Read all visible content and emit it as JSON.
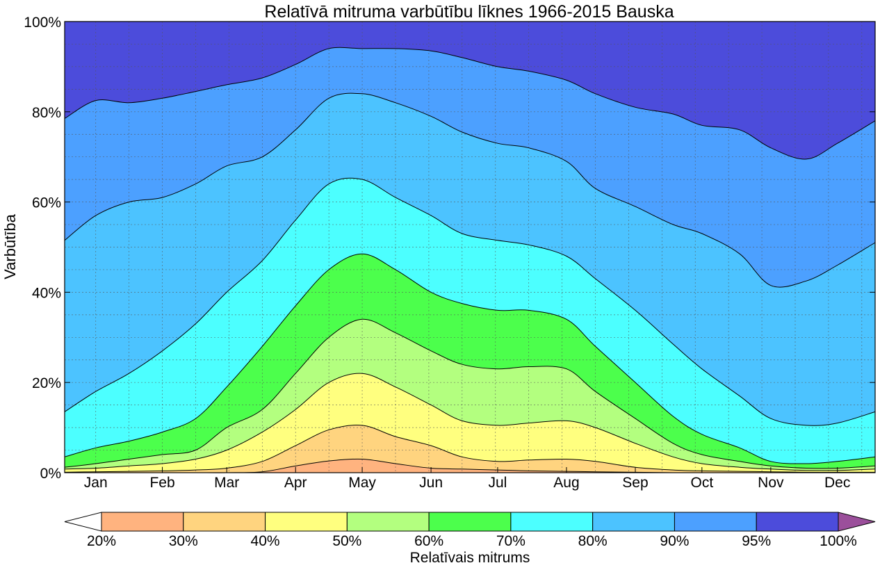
{
  "chart_data": {
    "type": "area",
    "title": "Relatīvā mitruma varbūtību līknes 1966-2015 Bauska",
    "ylabel": "Varbūtība",
    "xlabel": "",
    "ylim": [
      0,
      100
    ],
    "y_ticks": [
      "0%",
      "20%",
      "40%",
      "60%",
      "80%",
      "100%"
    ],
    "y_tick_values": [
      0,
      20,
      40,
      60,
      80,
      100
    ],
    "x_ticks": [
      "Jan",
      "Feb",
      "Mar",
      "Apr",
      "May",
      "Jun",
      "Jul",
      "Aug",
      "Sep",
      "Oct",
      "Nov",
      "Dec"
    ],
    "x_tick_days": [
      15,
      45,
      74,
      105,
      135,
      166,
      196,
      227,
      258,
      288,
      319,
      349
    ],
    "xlim": [
      1,
      366
    ],
    "grid": true,
    "x_days": [
      1,
      15,
      30,
      45,
      60,
      74,
      90,
      105,
      120,
      135,
      150,
      166,
      180,
      196,
      210,
      227,
      240,
      258,
      275,
      288,
      305,
      319,
      335,
      349,
      366
    ],
    "colorbar": {
      "label": "Relatīvais mitrums",
      "ticks": [
        "20%",
        "30%",
        "40%",
        "50%",
        "60%",
        "70%",
        "80%",
        "90%",
        "95%",
        "100%"
      ],
      "under_color": "#ffffff",
      "over_color": "#9b4f9b"
    },
    "series": [
      {
        "name": "20%",
        "color": "#ffb37f",
        "values": [
          0,
          0,
          0,
          0,
          0,
          0,
          0.2,
          1.5,
          2.6,
          3,
          2,
          1,
          0.8,
          0.6,
          0.4,
          0.3,
          0.2,
          0.1,
          0,
          0,
          0,
          0,
          0,
          0,
          0
        ]
      },
      {
        "name": "30%",
        "color": "#ffd47f",
        "values": [
          0.1,
          0.2,
          0.3,
          0.4,
          0.6,
          1,
          2.5,
          6,
          9.5,
          10.5,
          8,
          6,
          3.5,
          2.5,
          2.8,
          3,
          2.5,
          1.2,
          0.6,
          0.4,
          0.3,
          0.2,
          0.1,
          0.1,
          0.1
        ]
      },
      {
        "name": "40%",
        "color": "#ffff7f",
        "values": [
          0.8,
          1,
          1.5,
          2,
          3,
          5,
          9,
          14,
          20,
          22,
          19,
          15,
          11.5,
          10.5,
          11,
          11.5,
          10,
          6.5,
          3.5,
          2,
          1.2,
          0.8,
          0.5,
          0.5,
          0.8
        ]
      },
      {
        "name": "50%",
        "color": "#b3ff7f",
        "values": [
          1.2,
          2,
          3,
          4,
          5,
          10,
          14,
          22,
          30,
          34,
          31,
          27,
          24,
          23,
          23.5,
          23,
          18,
          12,
          6.5,
          4,
          2.5,
          1.5,
          1,
          1,
          1.5
        ]
      },
      {
        "name": "60%",
        "color": "#4cff4c",
        "values": [
          3.5,
          5.5,
          7,
          9,
          12,
          19,
          28,
          37,
          45,
          48.5,
          45,
          40,
          37.5,
          36,
          36,
          34,
          28,
          20,
          12.5,
          8.5,
          5.5,
          2.5,
          2,
          2.5,
          3.5
        ]
      },
      {
        "name": "70%",
        "color": "#4cffff",
        "values": [
          13.5,
          18,
          22,
          27,
          33,
          40,
          47,
          56,
          64,
          65,
          61,
          57,
          53,
          51.5,
          50.5,
          48,
          43,
          36,
          28.5,
          23,
          17,
          12,
          10.5,
          11,
          13.5
        ]
      },
      {
        "name": "80%",
        "color": "#4cc3ff",
        "values": [
          51.5,
          57,
          60,
          61,
          64,
          68,
          70,
          76,
          83,
          84,
          82,
          79,
          75.5,
          73,
          72,
          69,
          63,
          59,
          55,
          53,
          48.5,
          41.5,
          42.5,
          46,
          51
        ]
      },
      {
        "name": "90%",
        "color": "#4ca0ff",
        "values": [
          78.5,
          82.5,
          82,
          83,
          84.5,
          86,
          87.5,
          90.5,
          94,
          94,
          94,
          93.5,
          92,
          90,
          89,
          87,
          84,
          81,
          79.5,
          77,
          76,
          72,
          69.5,
          73,
          78
        ]
      },
      {
        "name": "95%",
        "color": "#4c4cdb",
        "values": [
          100,
          100,
          100,
          100,
          100,
          100,
          100,
          100,
          100,
          100,
          100,
          100,
          100,
          100,
          100,
          100,
          100,
          100,
          100,
          100,
          100,
          100,
          100,
          100,
          100
        ]
      }
    ]
  }
}
